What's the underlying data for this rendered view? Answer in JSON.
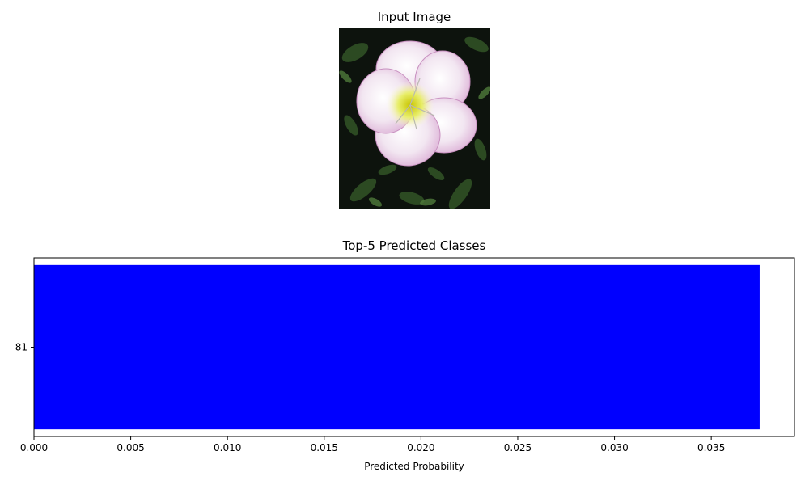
{
  "figure": {
    "image_title": "Input Image",
    "image_subject": "pink-and-white flower on dark green foliage"
  },
  "chart_data": {
    "type": "bar",
    "orientation": "horizontal",
    "title": "Top-5 Predicted Classes",
    "xlabel": "Predicted Probability",
    "ylabel": "",
    "categories": [
      "81"
    ],
    "values": [
      0.0375
    ],
    "xlim": [
      0,
      0.0393
    ],
    "xticks": [
      "0.000",
      "0.005",
      "0.010",
      "0.015",
      "0.020",
      "0.025",
      "0.030",
      "0.035"
    ],
    "bar_color": "#0000ff",
    "grid": false,
    "legend": "none"
  }
}
